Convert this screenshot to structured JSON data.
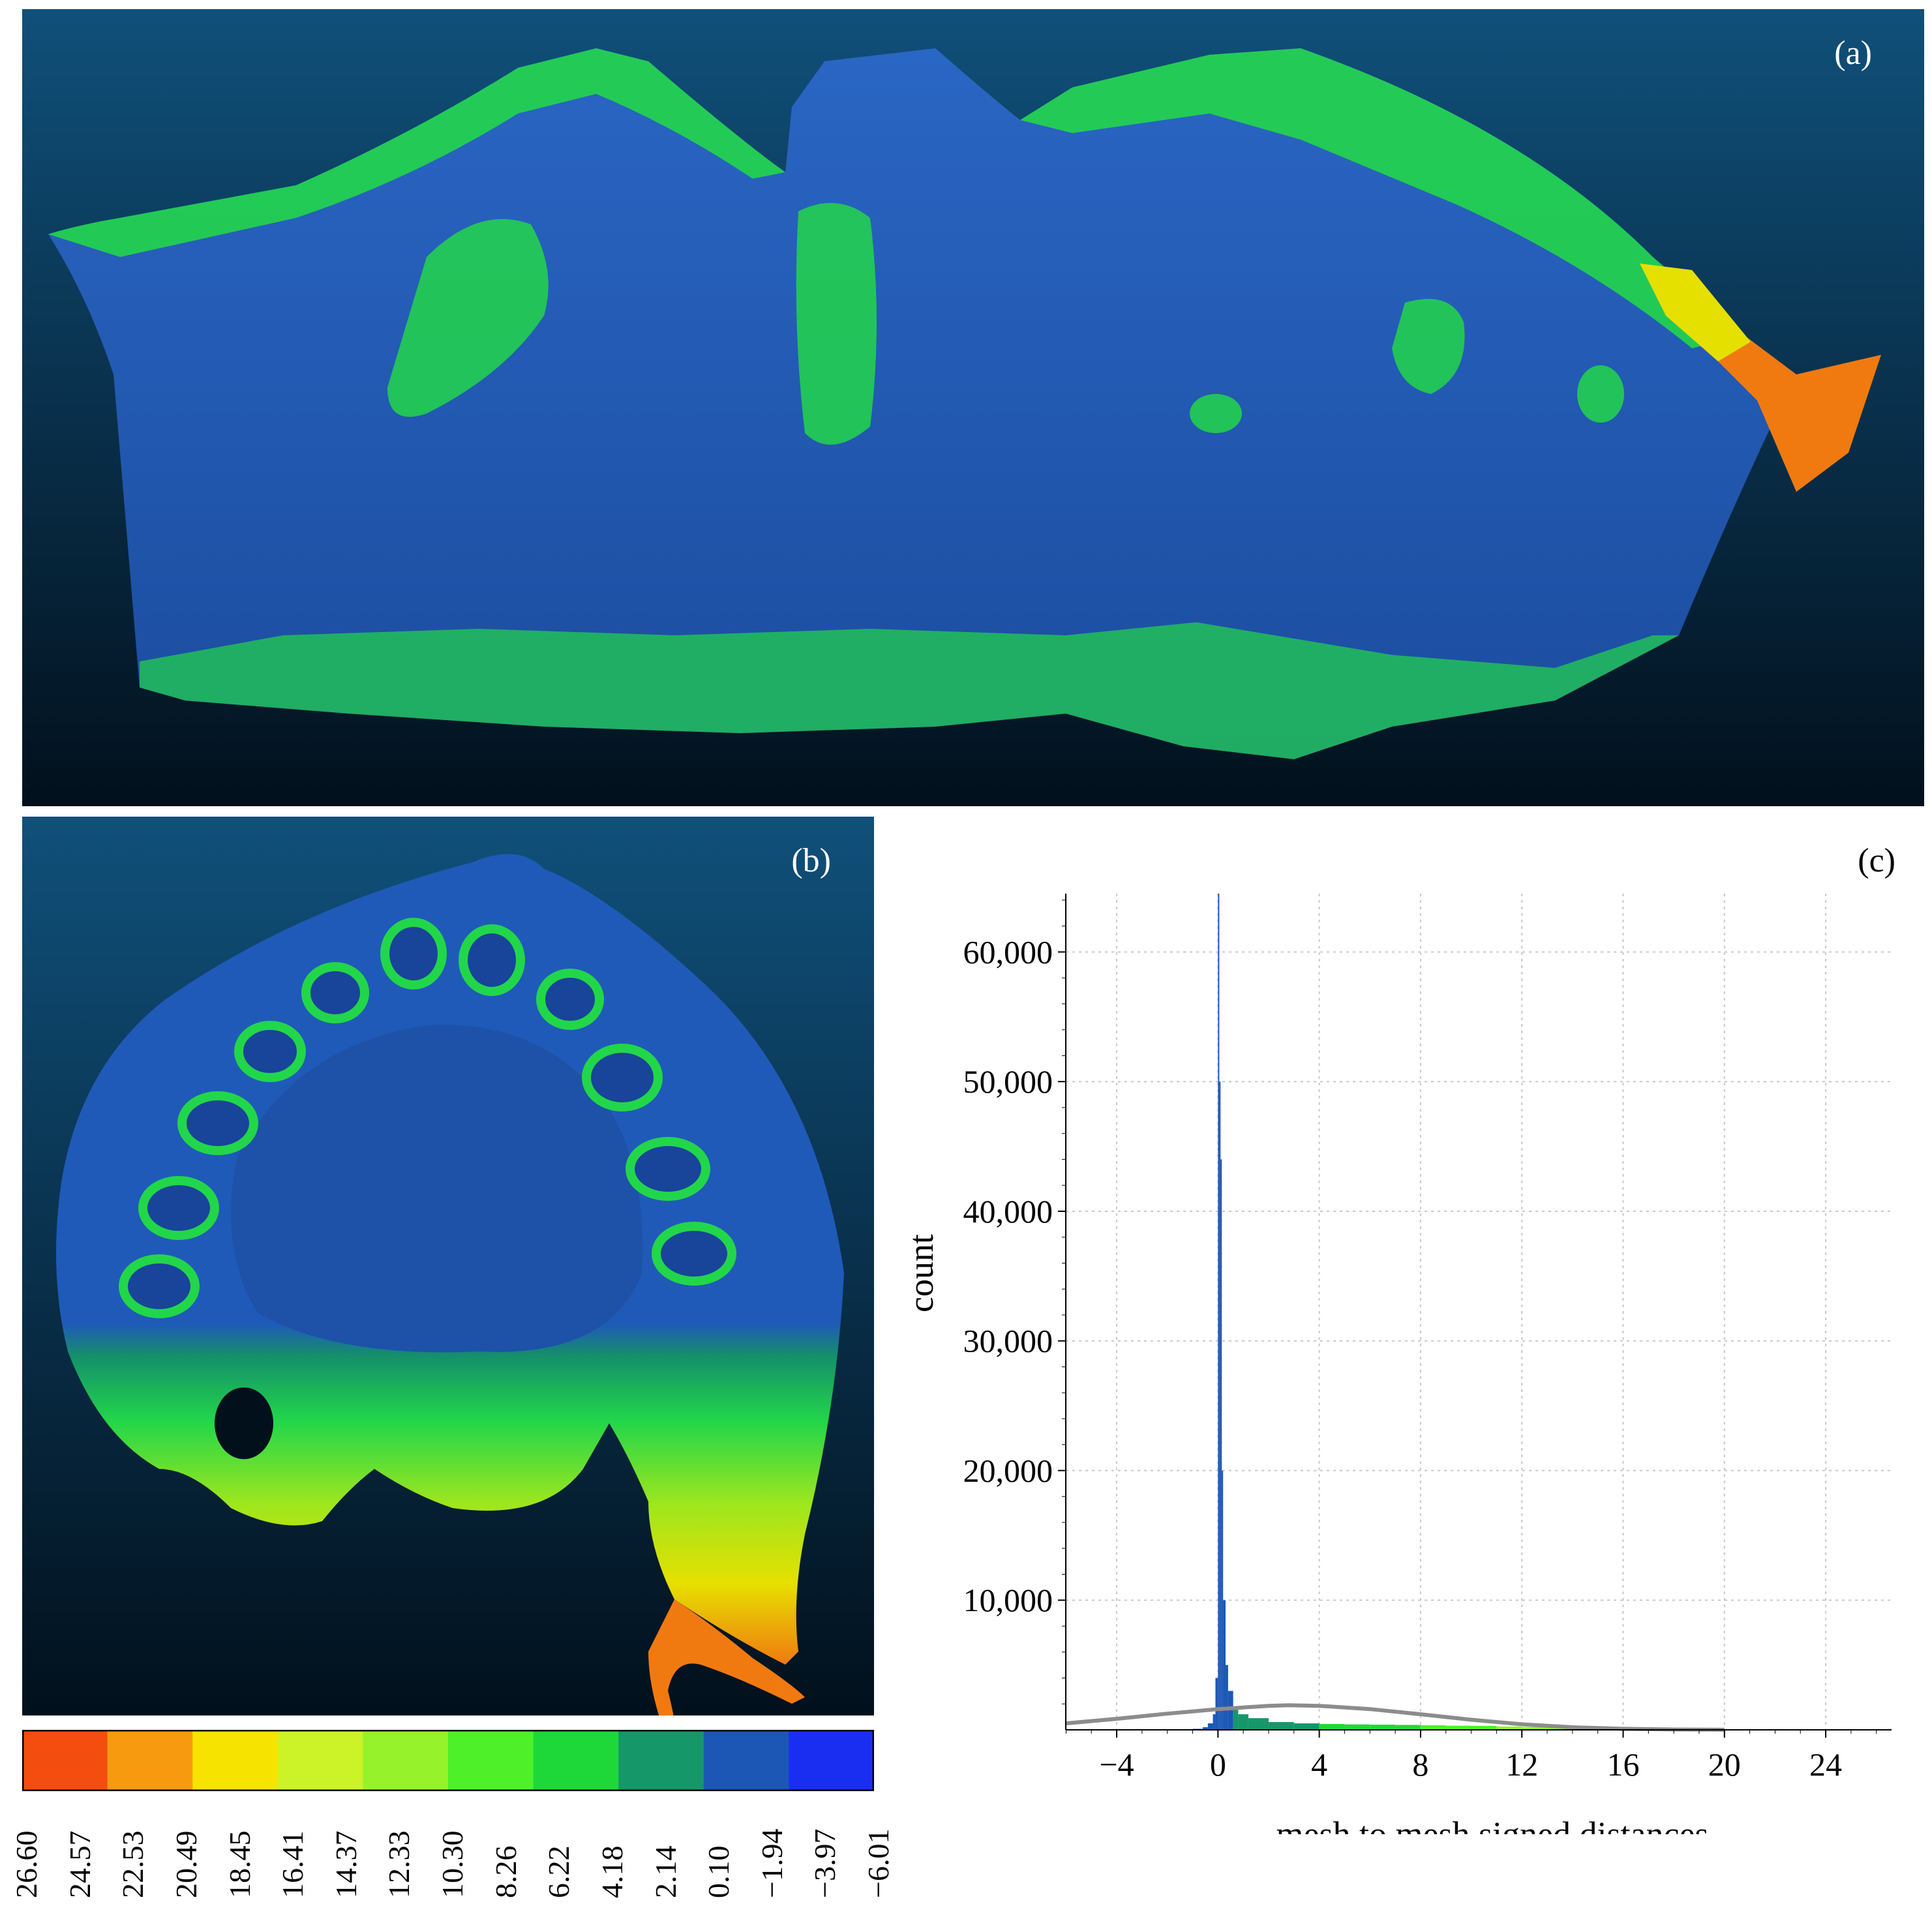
{
  "panels": {
    "a": {
      "label": "(a)"
    },
    "b": {
      "label": "(b)"
    },
    "c": {
      "label": "(c)"
    }
  },
  "colors": {
    "background_top": "#10507a",
    "background_bottom": "#02101c",
    "mesh_blue": "#1f5ab8",
    "mesh_green": "#22d64a",
    "mesh_teal": "#15906a",
    "mesh_yellow": "#e6e000",
    "mesh_orange": "#f07a10",
    "mesh_red": "#f04a10",
    "gaussian_curve": "#8c8c8c"
  },
  "colorbar": {
    "labels": [
      "26.60",
      "24.57",
      "22.53",
      "20.49",
      "18.45",
      "16.41",
      "14.37",
      "12.33",
      "10.30",
      "8.26",
      "6.22",
      "4.18",
      "2.14",
      "0.10",
      "−1.94",
      "−3.97",
      "−6.01"
    ],
    "colors": [
      "#f44d10",
      "#f89a10",
      "#f7e300",
      "#ccf228",
      "#96f22a",
      "#4ef02a",
      "#1ed83a",
      "#16976a",
      "#1c57b6",
      "#1a2ef2"
    ]
  },
  "chart_data": {
    "type": "bar",
    "xlabel": "mesh to mesh signed distances",
    "ylabel": "count",
    "xlim": [
      -6.01,
      26.6
    ],
    "ylim": [
      0,
      64500
    ],
    "xticks": [
      "−4",
      "0",
      "4",
      "8",
      "12",
      "16",
      "20",
      "24"
    ],
    "xtick_values": [
      -4,
      0,
      4,
      8,
      12,
      16,
      20,
      24
    ],
    "yticks": [
      "10,000",
      "20,000",
      "30,000",
      "40,000",
      "50,000",
      "60,000"
    ],
    "ytick_values": [
      10000,
      20000,
      30000,
      40000,
      50000,
      60000
    ],
    "grid": true,
    "histogram": {
      "x": [
        -1.0,
        -0.6,
        -0.4,
        -0.2,
        -0.1,
        0.0,
        0.05,
        0.1,
        0.15,
        0.2,
        0.3,
        0.4,
        0.6,
        0.8,
        1.2,
        2,
        3,
        4,
        5,
        6,
        7,
        8,
        9,
        10,
        11,
        12,
        13,
        14,
        15,
        16,
        17,
        18,
        19,
        20
      ],
      "y": [
        80,
        200,
        500,
        1200,
        4000,
        64500,
        50000,
        44000,
        20000,
        10000,
        5000,
        3000,
        1800,
        1200,
        900,
        600,
        500,
        450,
        420,
        400,
        380,
        350,
        320,
        300,
        260,
        220,
        190,
        160,
        130,
        110,
        90,
        70,
        50,
        30
      ]
    },
    "gaussian_fit": {
      "x": [
        -6.01,
        -4,
        -2,
        0,
        2,
        2.8,
        4,
        6,
        8,
        10,
        12,
        14,
        16,
        18,
        20
      ],
      "y": [
        500,
        850,
        1250,
        1600,
        1850,
        1900,
        1850,
        1600,
        1200,
        780,
        430,
        200,
        80,
        25,
        5
      ]
    }
  }
}
